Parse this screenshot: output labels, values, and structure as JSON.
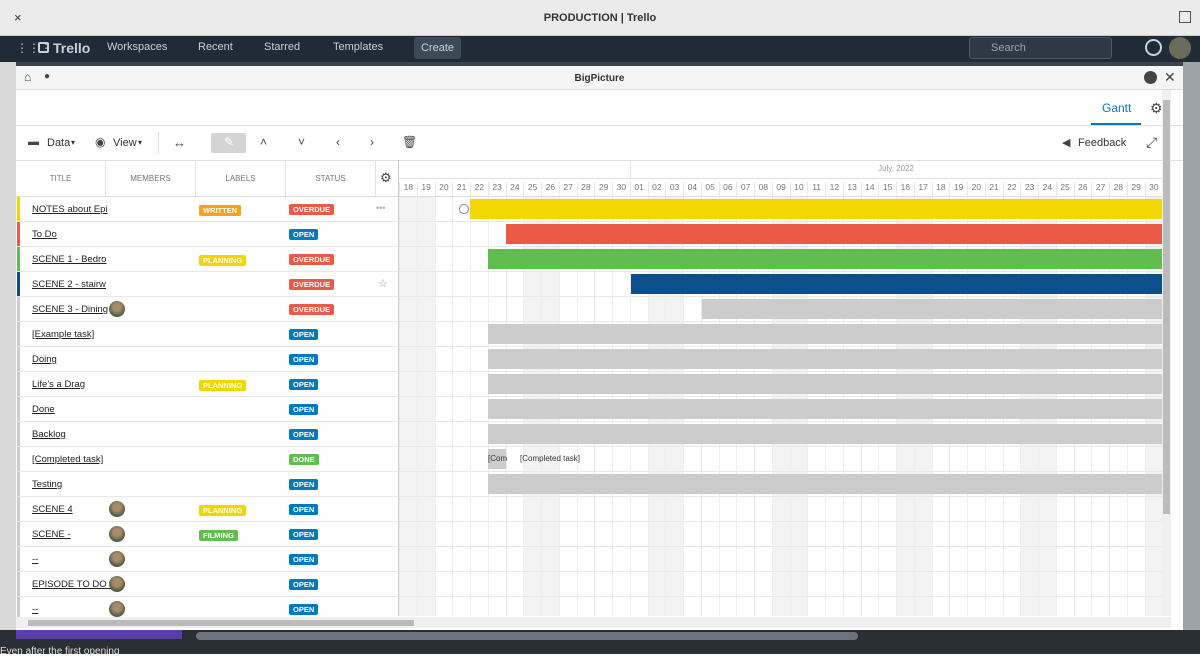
{
  "window": {
    "close": "×",
    "title": "PRODUCTION | Trello"
  },
  "nav": {
    "brand": "Trello",
    "menus": [
      "Workspaces",
      "Recent",
      "Starred",
      "Templates"
    ],
    "create": "Create",
    "search": "Search"
  },
  "modal": {
    "title": "BigPicture",
    "tab": "Gantt",
    "toolbar": {
      "data": "Data",
      "view": "View",
      "feedback": "Feedback"
    }
  },
  "table": {
    "columns": [
      "TITLE",
      "MEMBERS",
      "LABELS",
      "STATUS"
    ],
    "rows": [
      {
        "title": "NOTES about Epi",
        "color": "#f2d600",
        "label": {
          "text": "WRITTEN",
          "color": "#ff9f1a"
        },
        "status": {
          "text": "OVERDUE",
          "color": "#eb5a46"
        },
        "avatar": false
      },
      {
        "title": "To Do",
        "color": "#eb5a46",
        "status": {
          "text": "OPEN",
          "color": "#0079bf"
        },
        "avatar": false
      },
      {
        "title": "SCENE 1 - Bedro",
        "color": "#61bd4f",
        "label": {
          "text": "PLANNING",
          "color": "#f2d600"
        },
        "status": {
          "text": "OVERDUE",
          "color": "#eb5a46"
        },
        "avatar": false
      },
      {
        "title": "SCENE 2 - stairw",
        "color": "#0d4f8b",
        "status": {
          "text": "OVERDUE",
          "color": "#eb5a46"
        },
        "avatar": false
      },
      {
        "title": "SCENE 3 - Dining",
        "color": "#cccccc",
        "status": {
          "text": "OVERDUE",
          "color": "#eb5a46"
        },
        "avatar": true
      },
      {
        "title": "[Example task]",
        "color": "#cccccc",
        "status": {
          "text": "OPEN",
          "color": "#0079bf"
        },
        "avatar": false
      },
      {
        "title": "Doing",
        "color": "#cccccc",
        "status": {
          "text": "OPEN",
          "color": "#0079bf"
        },
        "avatar": false
      },
      {
        "title": "Life's a Drag",
        "color": "#cccccc",
        "label": {
          "text": "PLANNING",
          "color": "#f2d600"
        },
        "status": {
          "text": "OPEN",
          "color": "#0079bf"
        },
        "avatar": false
      },
      {
        "title": "Done",
        "color": "#cccccc",
        "status": {
          "text": "OPEN",
          "color": "#0079bf"
        },
        "avatar": false
      },
      {
        "title": "Backlog",
        "color": "#cccccc",
        "status": {
          "text": "OPEN",
          "color": "#0079bf"
        },
        "avatar": false
      },
      {
        "title": "[Completed task]",
        "color": "#cccccc",
        "status": {
          "text": "DONE",
          "color": "#61bd4f"
        },
        "avatar": false,
        "bar_text": "[Com",
        "bar_label": "[Completed task]"
      },
      {
        "title": "Testing",
        "color": "#cccccc",
        "status": {
          "text": "OPEN",
          "color": "#0079bf"
        },
        "avatar": false
      },
      {
        "title": "SCENE 4",
        "color": "#cccccc",
        "label": {
          "text": "PLANNING",
          "color": "#f2d600"
        },
        "status": {
          "text": "OPEN",
          "color": "#0079bf"
        },
        "avatar": true
      },
      {
        "title": "SCENE -",
        "color": "#cccccc",
        "label": {
          "text": "FILMING",
          "color": "#61bd4f"
        },
        "status": {
          "text": "OPEN",
          "color": "#0079bf"
        },
        "avatar": true
      },
      {
        "title": "--",
        "color": "#cccccc",
        "status": {
          "text": "OPEN",
          "color": "#0079bf"
        },
        "avatar": true
      },
      {
        "title": "EPISODE TO DO I",
        "color": "#cccccc",
        "status": {
          "text": "OPEN",
          "color": "#0079bf"
        },
        "avatar": true
      },
      {
        "title": "--",
        "color": "#cccccc",
        "status": {
          "text": "OPEN",
          "color": "#0079bf"
        },
        "avatar": true
      }
    ]
  },
  "timeline": {
    "month": "July, 2022",
    "days": [
      "18",
      "19",
      "20",
      "21",
      "22",
      "23",
      "24",
      "25",
      "26",
      "27",
      "28",
      "29",
      "30",
      "01",
      "02",
      "03",
      "04",
      "05",
      "06",
      "07",
      "08",
      "09",
      "10",
      "11",
      "12",
      "13",
      "14",
      "15",
      "16",
      "17",
      "18",
      "19",
      "20",
      "21",
      "22",
      "23",
      "24",
      "25",
      "26",
      "27",
      "28",
      "29",
      "30"
    ]
  },
  "background_text": "Even after the first opening"
}
